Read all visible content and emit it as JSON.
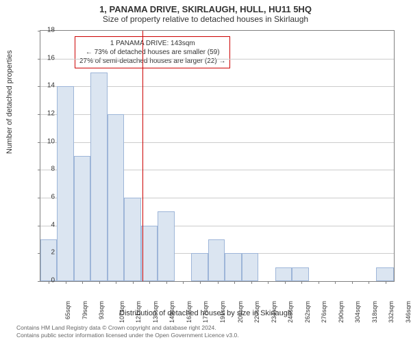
{
  "title": "1, PANAMA DRIVE, SKIRLAUGH, HULL, HU11 5HQ",
  "subtitle": "Size of property relative to detached houses in Skirlaugh",
  "y_axis_label": "Number of detached properties",
  "x_axis_label": "Distribution of detached houses by size in Skirlaugh",
  "info_box": {
    "line1": "1 PANAMA DRIVE: 143sqm",
    "line2": "← 73% of detached houses are smaller (59)",
    "line3": "27% of semi-detached houses are larger (22) →"
  },
  "footer": {
    "line1": "Contains HM Land Registry data © Crown copyright and database right 2024.",
    "line2": "Contains public sector information licensed under the Open Government Licence v3.0."
  },
  "chart": {
    "type": "histogram",
    "ylim": [
      0,
      18
    ],
    "ytick_step": 2,
    "yticks": [
      0,
      2,
      4,
      6,
      8,
      10,
      12,
      14,
      16,
      18
    ],
    "xlim": [
      58,
      353
    ],
    "xticks": [
      65,
      79,
      93,
      107,
      121,
      135,
      149,
      163,
      177,
      191,
      206,
      220,
      234,
      248,
      262,
      276,
      290,
      304,
      318,
      332,
      346
    ],
    "xtick_suffix": "sqm",
    "bar_color": "#dbe5f1",
    "bar_border_color": "#9db5d8",
    "grid_color": "#cccccc",
    "axis_color": "#808080",
    "ref_line_color": "#cc0000",
    "ref_line_x": 143,
    "background_color": "#ffffff",
    "title_fontsize": 13,
    "subtitle_fontsize": 12,
    "label_fontsize": 11,
    "tick_fontsize": 10,
    "bars": [
      {
        "x_start": 58,
        "x_end": 72,
        "value": 3
      },
      {
        "x_start": 72,
        "x_end": 86,
        "value": 14
      },
      {
        "x_start": 86,
        "x_end": 100,
        "value": 9
      },
      {
        "x_start": 100,
        "x_end": 114,
        "value": 15
      },
      {
        "x_start": 114,
        "x_end": 128,
        "value": 12
      },
      {
        "x_start": 128,
        "x_end": 142,
        "value": 6
      },
      {
        "x_start": 142,
        "x_end": 156,
        "value": 4
      },
      {
        "x_start": 156,
        "x_end": 170,
        "value": 5
      },
      {
        "x_start": 170,
        "x_end": 184,
        "value": 0
      },
      {
        "x_start": 184,
        "x_end": 198,
        "value": 2
      },
      {
        "x_start": 198,
        "x_end": 212,
        "value": 3
      },
      {
        "x_start": 212,
        "x_end": 226,
        "value": 2
      },
      {
        "x_start": 226,
        "x_end": 240,
        "value": 2
      },
      {
        "x_start": 240,
        "x_end": 254,
        "value": 0
      },
      {
        "x_start": 254,
        "x_end": 268,
        "value": 1
      },
      {
        "x_start": 268,
        "x_end": 282,
        "value": 1
      },
      {
        "x_start": 282,
        "x_end": 296,
        "value": 0
      },
      {
        "x_start": 296,
        "x_end": 310,
        "value": 0
      },
      {
        "x_start": 310,
        "x_end": 324,
        "value": 0
      },
      {
        "x_start": 324,
        "x_end": 338,
        "value": 0
      },
      {
        "x_start": 338,
        "x_end": 353,
        "value": 1
      }
    ]
  }
}
